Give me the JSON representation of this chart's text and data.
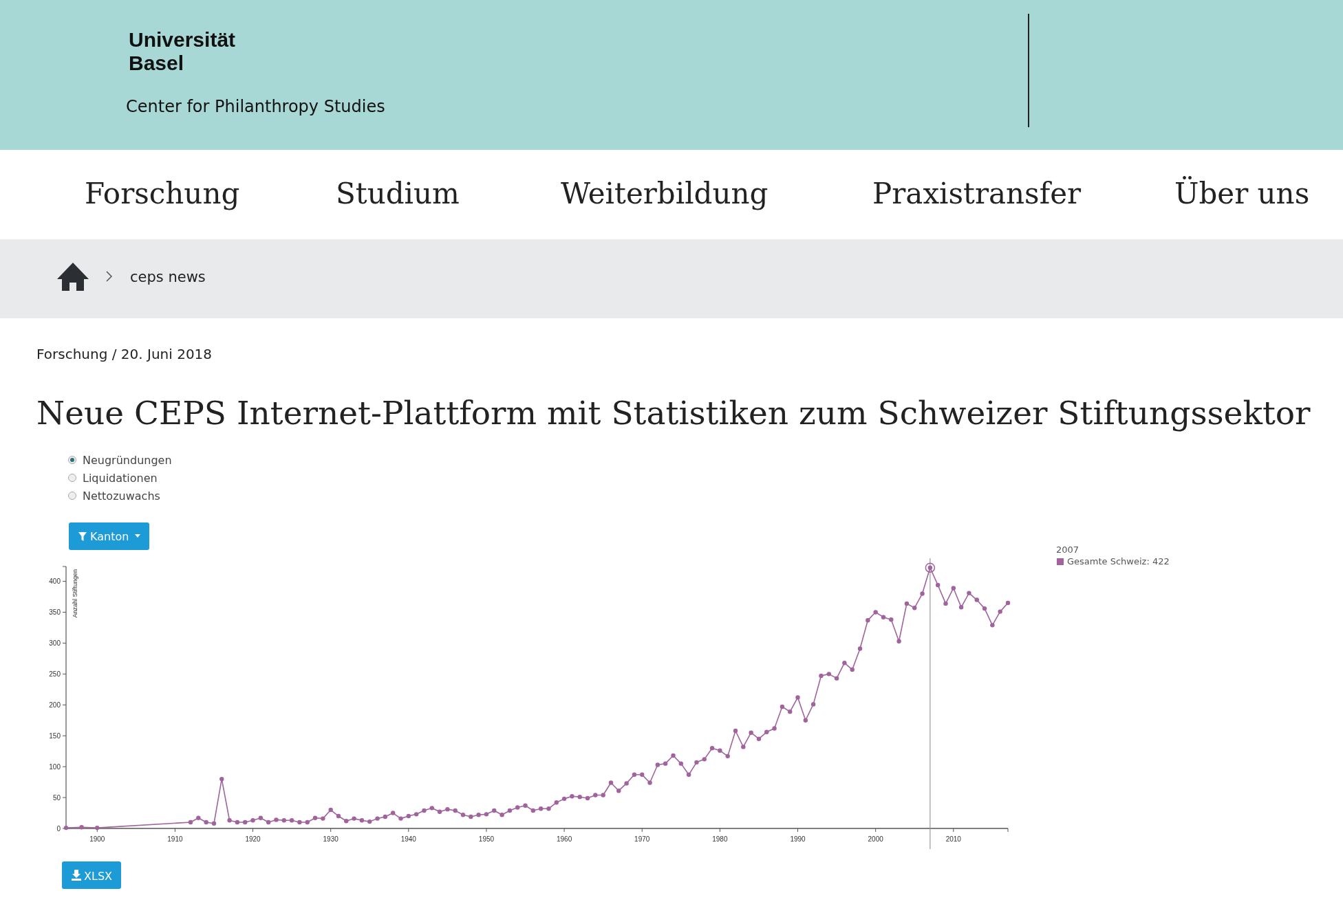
{
  "chart_data": {
    "type": "line",
    "title": "Neue CEPS Internet-Plattform mit Statistiken zum Schweizer Stiftungssektor",
    "ylabel": "Anzahl Stiftungen",
    "annotations": [
      "Universität Basel",
      "Center for Philanthropy Studies",
      "Forschung",
      "Studium",
      "Weiterbildung",
      "Praxistransfer",
      "Über uns",
      "ceps news",
      "Forschung / 20. Juni 2018",
      "Neugründungen",
      "Liquidationen",
      "Nettozuwachs",
      "Kanton",
      "XLSX",
      "2007",
      "Gesamte Schweiz: 422"
    ],
    "x": [
      1896,
      1898,
      1900,
      1912,
      1913,
      1914,
      1915,
      1916,
      1917,
      1918,
      1919,
      1920,
      1921,
      1922,
      1923,
      1924,
      1925,
      1926,
      1927,
      1928,
      1929,
      1930,
      1931,
      1932,
      1933,
      1934,
      1935,
      1936,
      1937,
      1938,
      1939,
      1940,
      1941,
      1942,
      1943,
      1944,
      1945,
      1946,
      1947,
      1948,
      1949,
      1950,
      1951,
      1952,
      1953,
      1954,
      1955,
      1956,
      1957,
      1958,
      1959,
      1960,
      1961,
      1962,
      1963,
      1964,
      1965,
      1966,
      1967,
      1968,
      1969,
      1970,
      1971,
      1972,
      1973,
      1974,
      1975,
      1976,
      1977,
      1978,
      1979,
      1980,
      1981,
      1982,
      1983,
      1984,
      1985,
      1986,
      1987,
      1988,
      1989,
      1990,
      1991,
      1992,
      1993,
      1994,
      1995,
      1996,
      1997,
      1998,
      1999,
      2000,
      2001,
      2002,
      2003,
      2004,
      2005,
      2006,
      2007,
      2008,
      2009,
      2010,
      2011,
      2012,
      2013,
      2014,
      2015,
      2016,
      2017
    ],
    "series": [
      {
        "color": "#a0639c",
        "values": [
          1,
          2,
          1,
          10,
          17,
          10,
          8,
          80,
          13,
          10,
          10,
          13,
          17,
          10,
          14,
          13,
          13,
          10,
          10,
          17,
          16,
          30,
          20,
          12,
          16,
          13,
          11,
          16,
          19,
          25,
          16,
          20,
          23,
          29,
          33,
          27,
          31,
          29,
          22,
          19,
          22,
          23,
          29,
          22,
          29,
          34,
          37,
          29,
          32,
          32,
          42,
          48,
          52,
          51,
          49,
          54,
          54,
          74,
          61,
          73,
          87,
          87,
          74,
          103,
          105,
          118,
          105,
          87,
          107,
          112,
          130,
          126,
          117,
          158,
          132,
          155,
          145,
          156,
          162,
          197,
          189,
          212,
          175,
          201,
          247,
          250,
          243,
          268,
          257,
          291,
          337,
          350,
          342,
          338,
          303,
          364,
          357,
          380,
          422,
          394,
          364,
          389,
          358,
          381,
          370,
          356,
          329,
          351,
          365
        ]
      }
    ],
    "xlim": [
      1896,
      2017
    ],
    "ylim": [
      0,
      424
    ],
    "xticks": [
      1900,
      1910,
      1920,
      1930,
      1940,
      1950,
      1960,
      1970,
      1980,
      1990,
      2000,
      2010
    ],
    "yticks": [
      0,
      50,
      100,
      150,
      200,
      250,
      300,
      350,
      400
    ],
    "ref_lines": [
      {
        "axis": "x",
        "value": 2007,
        "color": "#999999"
      }
    ],
    "marker": "circle",
    "grid": false
  }
}
